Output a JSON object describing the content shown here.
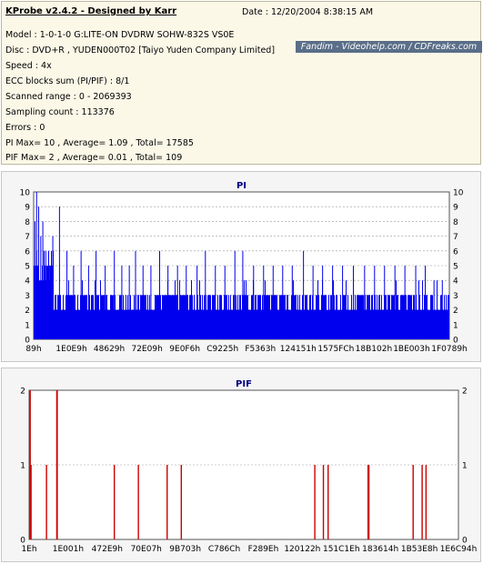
{
  "info": {
    "app_title": "KProbe v2.4.2 - Designed by Karr",
    "date": "Date : 12/20/2004 8:38:15 AM",
    "watermark": "Fandim - Videohelp.com / CDFreaks.com",
    "lines": [
      "Model : 1-0-1-0 G:LITE-ON DVDRW SOHW-832S  VS0E",
      "Disc : DVD+R , YUDEN000T02 [Taiyo Yuden Company Limited]",
      "Speed : 4x",
      "ECC blocks sum (PI/PIF) : 8/1",
      "Scanned range : 0 - 2069393",
      "Sampling count : 113376",
      "Errors : 0",
      "PI Max= 10 , Average= 1.09 , Total= 17585",
      "PIF Max= 2 , Average= 0.01 , Total= 109"
    ]
  },
  "colors": {
    "pi_bar": "#0000ee",
    "pif_bar": "#cc0000",
    "title": "#000080",
    "plot_bg": "#ffffff",
    "grid": "#9a9a9a"
  },
  "chart_data": [
    {
      "type": "bar",
      "title": "PI",
      "ylim": [
        0,
        10
      ],
      "yticks": [
        "0",
        "1",
        "2",
        "3",
        "4",
        "5",
        "6",
        "7",
        "8",
        "9",
        "10"
      ],
      "xticks": [
        "89h",
        "1E0E9h",
        "48629h",
        "72E09h",
        "9E0F6h",
        "C9225h",
        "F5363h",
        "124151h",
        "1575FCh",
        "18B102h",
        "1BE003h",
        "1F0789h"
      ],
      "grid": "dashed",
      "baseline_level": 3,
      "peaks": [
        {
          "x": 0.002,
          "v": 8
        },
        {
          "x": 0.006,
          "v": 10
        },
        {
          "x": 0.011,
          "v": 9
        },
        {
          "x": 0.016,
          "v": 7
        },
        {
          "x": 0.021,
          "v": 8
        },
        {
          "x": 0.028,
          "v": 6
        },
        {
          "x": 0.037,
          "v": 5
        },
        {
          "x": 0.045,
          "v": 7
        },
        {
          "x": 0.061,
          "v": 9
        },
        {
          "x": 0.079,
          "v": 6
        },
        {
          "x": 0.095,
          "v": 5
        },
        {
          "x": 0.113,
          "v": 6
        },
        {
          "x": 0.131,
          "v": 5
        },
        {
          "x": 0.149,
          "v": 6
        },
        {
          "x": 0.171,
          "v": 5
        },
        {
          "x": 0.193,
          "v": 6
        },
        {
          "x": 0.211,
          "v": 5
        },
        {
          "x": 0.229,
          "v": 5
        },
        {
          "x": 0.244,
          "v": 6
        },
        {
          "x": 0.262,
          "v": 5
        },
        {
          "x": 0.281,
          "v": 5
        },
        {
          "x": 0.302,
          "v": 6
        },
        {
          "x": 0.322,
          "v": 5
        },
        {
          "x": 0.345,
          "v": 5
        },
        {
          "x": 0.366,
          "v": 5
        },
        {
          "x": 0.392,
          "v": 5
        },
        {
          "x": 0.412,
          "v": 6
        },
        {
          "x": 0.436,
          "v": 5
        },
        {
          "x": 0.459,
          "v": 5
        },
        {
          "x": 0.483,
          "v": 6
        },
        {
          "x": 0.502,
          "v": 6
        },
        {
          "x": 0.528,
          "v": 5
        },
        {
          "x": 0.552,
          "v": 5
        },
        {
          "x": 0.575,
          "v": 5
        },
        {
          "x": 0.598,
          "v": 5
        },
        {
          "x": 0.621,
          "v": 5
        },
        {
          "x": 0.648,
          "v": 6
        },
        {
          "x": 0.671,
          "v": 5
        },
        {
          "x": 0.694,
          "v": 5
        },
        {
          "x": 0.718,
          "v": 5
        },
        {
          "x": 0.742,
          "v": 5
        },
        {
          "x": 0.768,
          "v": 5
        },
        {
          "x": 0.795,
          "v": 5
        },
        {
          "x": 0.819,
          "v": 5
        },
        {
          "x": 0.843,
          "v": 5
        },
        {
          "x": 0.868,
          "v": 5
        },
        {
          "x": 0.892,
          "v": 5
        },
        {
          "x": 0.918,
          "v": 5
        },
        {
          "x": 0.941,
          "v": 5
        },
        {
          "x": 0.962,
          "v": 4
        },
        {
          "x": 0.982,
          "v": 4
        }
      ]
    },
    {
      "type": "bar",
      "title": "PIF",
      "ylim": [
        0,
        2
      ],
      "yticks": [
        "0",
        "1",
        "2"
      ],
      "xticks": [
        "1Eh",
        "1E001h",
        "472E9h",
        "70E07h",
        "9B703h",
        "C786Ch",
        "F289Eh",
        "120122h",
        "151C1Eh",
        "183614h",
        "1B53E8h",
        "1E6C94h"
      ],
      "grid": "dashed",
      "bars": [
        {
          "x": 0.001,
          "v": 2
        },
        {
          "x": 0.003,
          "v": 1
        },
        {
          "x": 0.039,
          "v": 1
        },
        {
          "x": 0.063,
          "v": 2
        },
        {
          "x": 0.064,
          "v": 2
        },
        {
          "x": 0.197,
          "v": 1
        },
        {
          "x": 0.253,
          "v": 1
        },
        {
          "x": 0.32,
          "v": 1
        },
        {
          "x": 0.353,
          "v": 1
        },
        {
          "x": 0.664,
          "v": 1
        },
        {
          "x": 0.684,
          "v": 1
        },
        {
          "x": 0.695,
          "v": 1
        },
        {
          "x": 0.788,
          "v": 1
        },
        {
          "x": 0.79,
          "v": 1
        },
        {
          "x": 0.893,
          "v": 1
        },
        {
          "x": 0.914,
          "v": 1
        },
        {
          "x": 0.923,
          "v": 1
        }
      ]
    }
  ]
}
